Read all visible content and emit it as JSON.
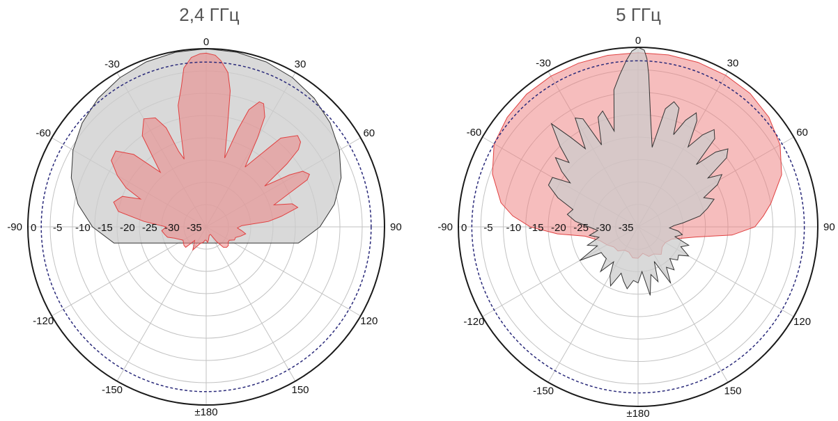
{
  "chart_data": [
    {
      "type": "polar",
      "title": "2,4 ГГц",
      "angle_ticks": [
        "0",
        "30",
        "60",
        "90",
        "120",
        "150",
        "±180",
        "-150",
        "-120",
        "-90",
        "-60",
        "-30"
      ],
      "radial_ticks": [
        "0",
        "-5",
        "-10",
        "-15",
        "-20",
        "-25",
        "-30",
        "-35"
      ],
      "rlim": [
        -40,
        0
      ],
      "reference_level_db": -3,
      "colors": {
        "series_a": "#cccccc",
        "series_b": "#ee7c7c",
        "reference": "#2a2a7a"
      },
      "series": [
        {
          "fill": "#cccccc",
          "stroke": "#333333",
          "angles": [
            0,
            10,
            20,
            30,
            40,
            50,
            60,
            70,
            80,
            90,
            100,
            260,
            270,
            280,
            290,
            300,
            310,
            320,
            330,
            340,
            350
          ],
          "values": [
            0,
            -0.2,
            -0.6,
            -1.3,
            -2.3,
            -3.7,
            -5.5,
            -7.8,
            -10.8,
            -14.5,
            -19,
            -19,
            -14.5,
            -10.8,
            -7.8,
            -5.5,
            -3.7,
            -2.3,
            -1.3,
            -0.6,
            -0.2
          ]
        },
        {
          "fill": "#ee7c7c",
          "stroke": "#e04040",
          "angles": [
            0,
            3,
            5,
            8,
            10,
            12,
            15,
            18,
            20,
            23,
            25,
            28,
            30,
            33,
            35,
            40,
            45,
            48,
            50,
            52,
            55,
            58,
            60,
            63,
            65,
            68,
            72,
            75,
            78,
            82,
            85,
            88,
            92,
            96,
            100,
            105,
            110,
            115,
            120,
            125,
            130,
            135,
            140,
            145,
            150,
            160,
            170,
            175,
            180,
            185,
            190,
            200,
            210,
            220,
            225,
            230,
            240,
            250,
            255,
            260,
            265,
            270,
            275,
            280,
            285,
            290,
            293,
            296,
            300,
            305,
            310,
            315,
            320,
            325,
            330,
            335,
            338,
            340,
            342,
            345,
            347,
            350,
            352,
            355,
            358
          ],
          "values": [
            -1,
            -1.4,
            -2.5,
            -5,
            -9,
            -17,
            -24,
            -17,
            -12,
            -9.5,
            -9.5,
            -12,
            -17,
            -24,
            -22,
            -14,
            -11,
            -11.5,
            -13,
            -17,
            -24,
            -18,
            -15,
            -14,
            -15,
            -20,
            -24,
            -20,
            -19,
            -23,
            -26,
            -32,
            -33,
            -32,
            -31,
            -32,
            -33,
            -33,
            -34,
            -34,
            -33.5,
            -33.5,
            -34,
            -36,
            -38,
            -38,
            -37,
            -36.5,
            -37,
            -37,
            -36.5,
            -36,
            -34,
            -36,
            -33.5,
            -33.5,
            -34,
            -32.5,
            -31,
            -30.5,
            -30,
            -31,
            -26,
            -20,
            -18.5,
            -20,
            -24,
            -20,
            -17,
            -14,
            -13.5,
            -17,
            -24,
            -15,
            -12,
            -13,
            -16,
            -22,
            -24,
            -18,
            -12,
            -8,
            -4,
            -1.8,
            -1.1
          ]
        }
      ]
    },
    {
      "type": "polar",
      "title": "5 ГГц",
      "angle_ticks": [
        "0",
        "30",
        "60",
        "90",
        "120",
        "150",
        "±180",
        "-150",
        "-120",
        "-90",
        "-60",
        "-30"
      ],
      "radial_ticks": [
        "0",
        "-5",
        "-10",
        "-15",
        "-20",
        "-25",
        "-30",
        "-35"
      ],
      "rlim": [
        -40,
        0
      ],
      "reference_level_db": -3,
      "colors": {
        "series_a": "#cccccc",
        "series_b": "#ee7c7c",
        "reference": "#2a2a7a"
      },
      "series": [
        {
          "fill": "#ee7c7c",
          "stroke": "#e04040",
          "angles": [
            0,
            10,
            20,
            30,
            40,
            50,
            60,
            70,
            80,
            85,
            90,
            95,
            100,
            110,
            120,
            130,
            140,
            150,
            160,
            170,
            180,
            190,
            200,
            210,
            220,
            230,
            240,
            250,
            260,
            265,
            270,
            275,
            280,
            290,
            300,
            310,
            320,
            330,
            340,
            350
          ],
          "values": [
            -1.2,
            -1.1,
            -1.0,
            -1.0,
            -1.2,
            -2,
            -3.5,
            -6,
            -10,
            -12,
            -14,
            -19,
            -27,
            -32,
            -33,
            -33,
            -32,
            -33,
            -33,
            -34,
            -33,
            -33,
            -34,
            -34,
            -33,
            -33,
            -32,
            -31,
            -28,
            -22,
            -16,
            -12,
            -9,
            -5.5,
            -3,
            -2,
            -1.4,
            -1.2,
            -1.2,
            -1.2
          ]
        },
        {
          "fill": "#cccccc",
          "stroke": "#333333",
          "angles": [
            0,
            2,
            3,
            4,
            6,
            10,
            13,
            16,
            19,
            21,
            24,
            27,
            29,
            32,
            35,
            38,
            41,
            43,
            46,
            49,
            52,
            55,
            58,
            62,
            66,
            70,
            75,
            80,
            85,
            88,
            92,
            96,
            100,
            105,
            110,
            115,
            120,
            125,
            130,
            135,
            140,
            145,
            150,
            155,
            160,
            165,
            170,
            175,
            180,
            185,
            190,
            195,
            200,
            205,
            210,
            215,
            220,
            225,
            230,
            235,
            240,
            245,
            250,
            255,
            260,
            265,
            270,
            275,
            280,
            285,
            290,
            295,
            300,
            303,
            306,
            310,
            313,
            316,
            320,
            323,
            326,
            330,
            333,
            336,
            340,
            343,
            346,
            350,
            353,
            356,
            358
          ],
          "values": [
            0,
            -0.6,
            -2.5,
            -6,
            -14,
            -22,
            -13,
            -11,
            -12,
            -18,
            -14,
            -11.5,
            -13,
            -19,
            -15,
            -12.5,
            -14,
            -21,
            -16,
            -13.5,
            -15,
            -21,
            -18,
            -20,
            -24,
            -22,
            -24,
            -26,
            -30,
            -32,
            -33,
            -31,
            -30,
            -31.5,
            -28,
            -29.5,
            -27,
            -29,
            -28.5,
            -30,
            -27.5,
            -29,
            -25.5,
            -31.5,
            -27,
            -29,
            -24.5,
            -30,
            -27.5,
            -28,
            -26,
            -27.5,
            -29,
            -25.5,
            -27.5,
            -30.5,
            -27,
            -30,
            -30,
            -30,
            -25,
            -30,
            -28,
            -31,
            -29,
            -31,
            -29,
            -26,
            -24,
            -25,
            -21,
            -18,
            -18,
            -22,
            -19,
            -16,
            -19,
            -15,
            -10,
            -15,
            -19,
            -12,
            -13,
            -20,
            -14,
            -13,
            -18,
            -9,
            -6,
            -2.8,
            -0.8
          ]
        }
      ]
    }
  ]
}
